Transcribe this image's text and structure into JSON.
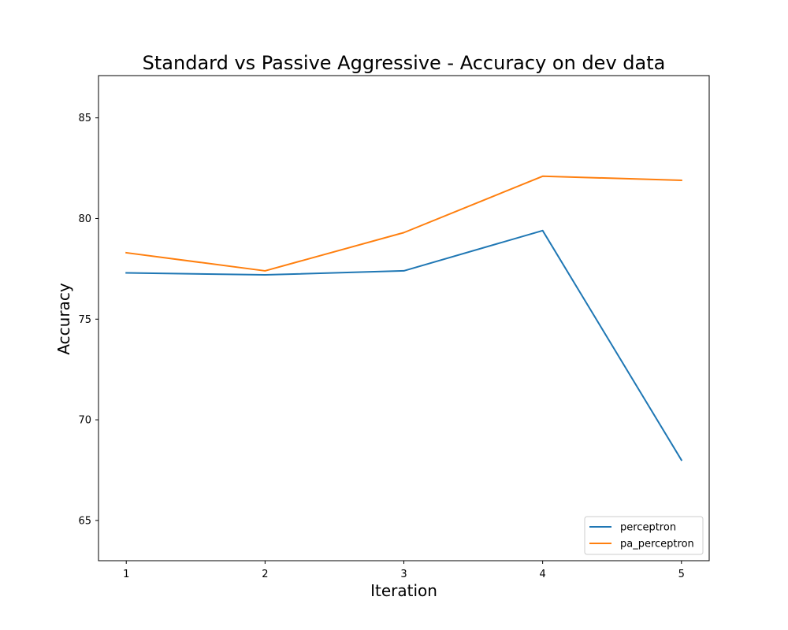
{
  "chart_data": {
    "type": "line",
    "title": "Standard vs Passive Aggressive - Accuracy on dev data",
    "xlabel": "Iteration",
    "ylabel": "Accuracy",
    "x": [
      1,
      2,
      3,
      4,
      5
    ],
    "xticks": [
      "1",
      "2",
      "3",
      "4",
      "5"
    ],
    "xlim": [
      0.8,
      5.2
    ],
    "yticks": [
      "65",
      "70",
      "75",
      "80",
      "85"
    ],
    "ylim": [
      63.0,
      87.1
    ],
    "grid": false,
    "legend_position": "lower-right",
    "series": [
      {
        "name": "perceptron",
        "color": "#1f77b4",
        "values": [
          77.3,
          77.2,
          77.4,
          79.4,
          68.0
        ]
      },
      {
        "name": "pa_perceptron",
        "color": "#ff7f0e",
        "values": [
          78.3,
          77.4,
          79.3,
          82.1,
          81.9
        ]
      }
    ]
  }
}
